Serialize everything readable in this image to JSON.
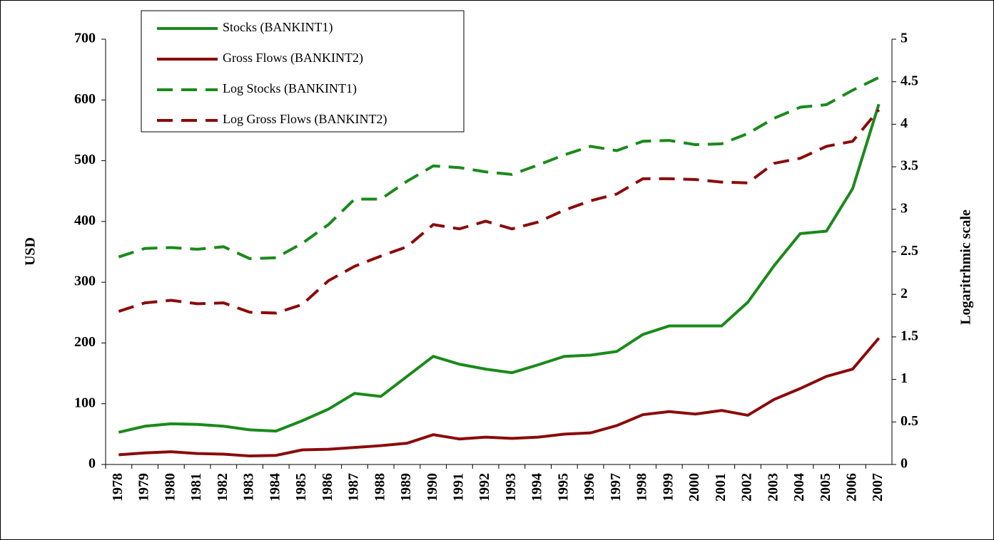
{
  "chart_data": {
    "type": "line",
    "y_label": "USD",
    "y2_label": "Logaritrhmic scale",
    "categories": [
      "1978",
      "1979",
      "1980",
      "1981",
      "1982",
      "1983",
      "1984",
      "1985",
      "1986",
      "1987",
      "1988",
      "1989",
      "1990",
      "1991",
      "1992",
      "1993",
      "1994",
      "1995",
      "1996",
      "1997",
      "1998",
      "1999",
      "2000",
      "2001",
      "2002",
      "2003",
      "2004",
      "2005",
      "2006",
      "2007"
    ],
    "ylim": [
      0,
      700
    ],
    "yticks": [
      0,
      100,
      200,
      300,
      400,
      500,
      600,
      700
    ],
    "y2lim": [
      0,
      5
    ],
    "y2ticks": [
      0,
      0.5,
      1,
      1.5,
      2,
      2.5,
      3,
      3.5,
      4,
      4.5,
      5
    ],
    "series": [
      {
        "name": "Stocks (BANKINT1)",
        "color": "#1a8a1a",
        "line_style": "solid",
        "values": [
          53,
          63,
          67,
          66,
          63,
          57,
          55,
          72,
          91,
          117,
          112,
          145,
          178,
          165,
          157,
          151,
          164,
          178,
          180,
          186,
          214,
          228,
          228,
          228,
          267,
          327,
          380,
          384,
          454,
          593
        ]
      },
      {
        "name": "Gross Flows (BANKINT2)",
        "color": "#8b0a0a",
        "line_style": "solid",
        "values": [
          16,
          19,
          21,
          18,
          17,
          14,
          15,
          24,
          25,
          28,
          31,
          35,
          49,
          42,
          45,
          43,
          45,
          50,
          52,
          64,
          82,
          87,
          83,
          89,
          81,
          107,
          125,
          145,
          157,
          208
        ]
      },
      {
        "name": "Log Stocks (BANKINT1)",
        "color": "#1a8a1a",
        "line_style": "dashed",
        "axis": "y2",
        "values": [
          2.44,
          2.54,
          2.55,
          2.53,
          2.56,
          2.42,
          2.43,
          2.6,
          2.82,
          3.12,
          3.12,
          3.33,
          3.51,
          3.49,
          3.44,
          3.41,
          3.52,
          3.64,
          3.74,
          3.69,
          3.8,
          3.81,
          3.76,
          3.77,
          3.89,
          4.07,
          4.2,
          4.23,
          4.4,
          4.55
        ]
      },
      {
        "name": "Log Gross Flows (BANKINT2)",
        "color": "#8b0a0a",
        "line_style": "dashed",
        "axis": "y2",
        "values": [
          1.8,
          1.9,
          1.93,
          1.89,
          1.9,
          1.79,
          1.78,
          1.88,
          2.16,
          2.33,
          2.45,
          2.56,
          2.82,
          2.77,
          2.86,
          2.77,
          2.85,
          2.99,
          3.1,
          3.18,
          3.36,
          3.36,
          3.35,
          3.32,
          3.31,
          3.54,
          3.6,
          3.74,
          3.8,
          4.17
        ]
      }
    ]
  }
}
